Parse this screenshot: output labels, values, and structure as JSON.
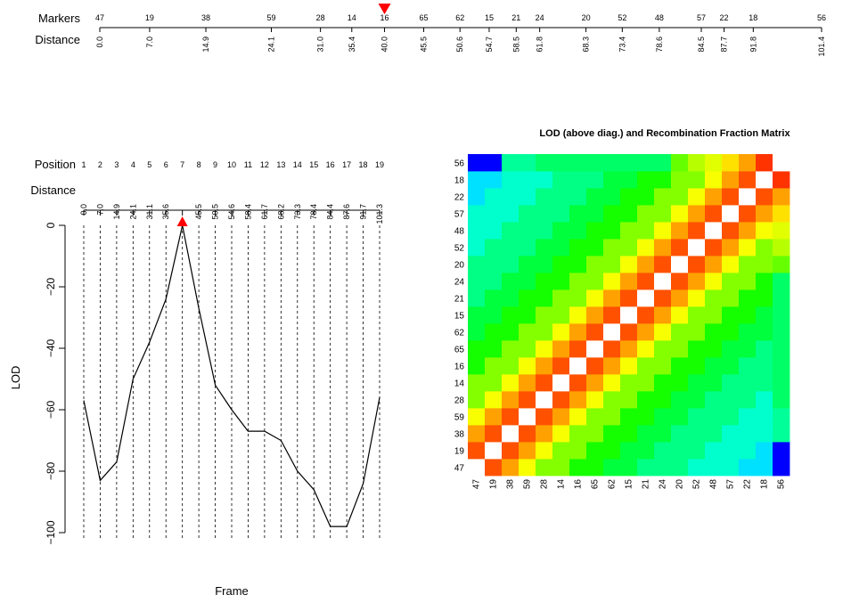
{
  "colors": {
    "selected_marker": "#ff0000",
    "line": "#000000",
    "heat_low": "#0000ff",
    "heat_high": "#ff0000",
    "heat_diagonal": "#ffffff"
  },
  "top_track": {
    "markers_label": "Markers",
    "distance_label": "Distance",
    "markers": [
      "47",
      "19",
      "38",
      "59",
      "28",
      "14",
      "16",
      "65",
      "62",
      "15",
      "21",
      "24",
      "20",
      "52",
      "48",
      "57",
      "22",
      "18",
      "56"
    ],
    "distances": [
      "0.0",
      "7.0",
      "14.9",
      "24.1",
      "31.0",
      "35.4",
      "40.0",
      "45.5",
      "50.6",
      "54.7",
      "58.5",
      "61.8",
      "68.3",
      "73.4",
      "78.6",
      "84.5",
      "87.7",
      "91.8",
      "101.4"
    ],
    "selected_index": 6
  },
  "lod_plot": {
    "position_label": "Position",
    "distance_label": "Distance",
    "xlabel": "Frame",
    "ylabel": "LOD",
    "positions": [
      "1",
      "2",
      "3",
      "4",
      "5",
      "6",
      "7",
      "8",
      "9",
      "10",
      "11",
      "12",
      "13",
      "14",
      "15",
      "16",
      "17",
      "18",
      "19"
    ],
    "distances": [
      "0.0",
      "7.0",
      "14.9",
      "24.1",
      "31.1",
      "35.6",
      "",
      "45.5",
      "50.5",
      "54.6",
      "58.4",
      "61.7",
      "68.2",
      "73.3",
      "78.4",
      "84.4",
      "87.6",
      "91.7",
      "101.3"
    ],
    "selected_index": 6,
    "ylim": [
      -105,
      2
    ],
    "yticks": [
      "0",
      "−20",
      "−40",
      "−60",
      "−80",
      "−100"
    ],
    "ytick_values": [
      0,
      -20,
      -40,
      -60,
      -80,
      -100
    ],
    "chart_data": {
      "type": "line",
      "x": [
        1,
        2,
        3,
        4,
        5,
        6,
        7,
        8,
        9,
        10,
        11,
        12,
        13,
        14,
        15,
        16,
        17,
        18,
        19
      ],
      "values": [
        -57,
        -83,
        -77,
        -50,
        -38,
        -24,
        0,
        -27,
        -52,
        -60,
        -67,
        -67,
        -70,
        -80,
        -86,
        -98,
        -98,
        -84,
        -56
      ],
      "xlabel": "Frame",
      "ylabel": "LOD"
    }
  },
  "heatmap": {
    "title": "LOD (above diag.) and Recombination Fraction Matrix",
    "labels": [
      "47",
      "19",
      "38",
      "59",
      "28",
      "14",
      "16",
      "65",
      "62",
      "15",
      "21",
      "24",
      "20",
      "52",
      "48",
      "57",
      "22",
      "18",
      "56"
    ],
    "chart_data": {
      "type": "heatmap",
      "categories": [
        "47",
        "19",
        "38",
        "59",
        "28",
        "14",
        "16",
        "65",
        "62",
        "15",
        "21",
        "24",
        "20",
        "52",
        "48",
        "57",
        "22",
        "18",
        "56"
      ],
      "diagonal": "white",
      "approximate": true
    }
  }
}
